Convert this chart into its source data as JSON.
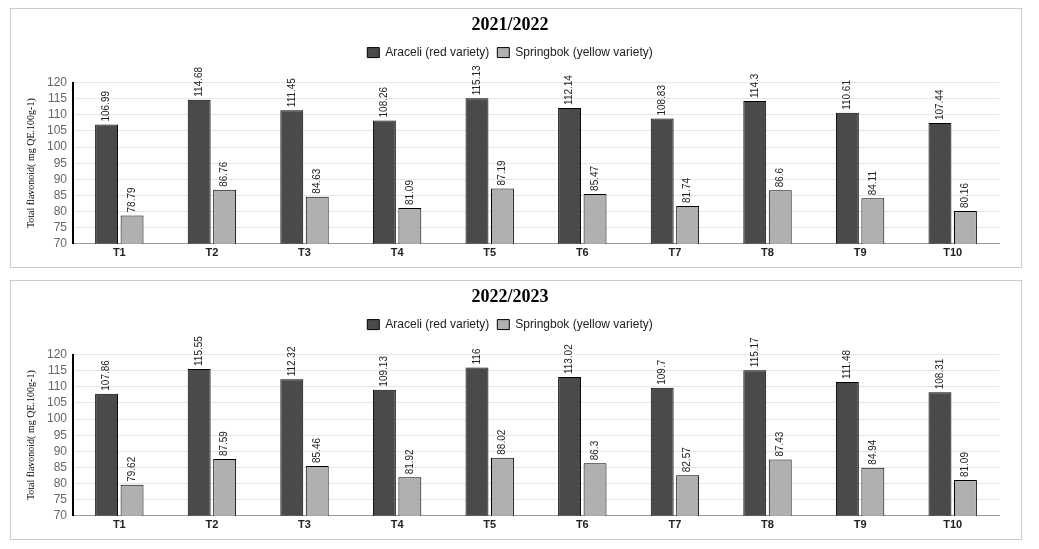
{
  "chart_data": [
    {
      "type": "bar",
      "title": "2021/2022",
      "ylabel": "Total flavonoid( mg QE.100g-1)",
      "categories": [
        "T1",
        "T2",
        "T3",
        "T4",
        "T5",
        "T6",
        "T7",
        "T8",
        "T9",
        "T10"
      ],
      "series": [
        {
          "name": "Araceli (red variety)",
          "color": "#4a4a4a",
          "values": [
            106.99,
            114.68,
            111.45,
            108.26,
            115.13,
            112.14,
            108.83,
            114.3,
            110.61,
            107.44
          ]
        },
        {
          "name": "Springbok (yellow variety)",
          "color": "#b0b0b0",
          "values": [
            78.79,
            86.76,
            84.63,
            81.09,
            87.19,
            85.47,
            81.74,
            86.6,
            84.11,
            80.16
          ]
        }
      ],
      "ylim": [
        70,
        120
      ],
      "yticks": [
        70,
        75,
        80,
        85,
        90,
        95,
        100,
        105,
        110,
        115,
        120
      ],
      "grid": "y",
      "legend": "top",
      "data_labels": true
    },
    {
      "type": "bar",
      "title": "2022/2023",
      "ylabel": "Total flavonoid( mg QE.100g-1)",
      "categories": [
        "T1",
        "T2",
        "T3",
        "T4",
        "T5",
        "T6",
        "T7",
        "T8",
        "T9",
        "T10"
      ],
      "series": [
        {
          "name": "Araceli (red variety)",
          "color": "#4a4a4a",
          "values": [
            107.86,
            115.55,
            112.32,
            109.13,
            116,
            113.02,
            109.7,
            115.17,
            111.48,
            108.31
          ]
        },
        {
          "name": "Springbok (yellow variety)",
          "color": "#b0b0b0",
          "values": [
            79.62,
            87.59,
            85.46,
            81.92,
            88.02,
            86.3,
            82.57,
            87.43,
            84.94,
            81.09
          ]
        }
      ],
      "ylim": [
        70,
        120
      ],
      "yticks": [
        70,
        75,
        80,
        85,
        90,
        95,
        100,
        105,
        110,
        115,
        120
      ],
      "grid": "y",
      "legend": "top",
      "data_labels": true
    }
  ]
}
